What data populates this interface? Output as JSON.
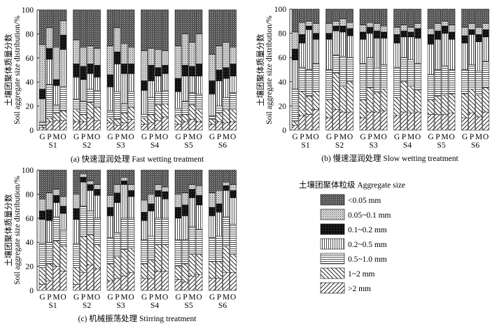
{
  "legend": {
    "title": "土壤团聚体粒级 Aggregate size",
    "items": [
      {
        "label": "<0.05 mm",
        "pattern": "dots-dark"
      },
      {
        "label": "0.05~0.1 mm",
        "pattern": "dots-light"
      },
      {
        "label": "0.1~0.2 mm",
        "pattern": "black"
      },
      {
        "label": "0.2~0.5 mm",
        "pattern": "vlines"
      },
      {
        "label": "0.5~1.0 mm",
        "pattern": "hlines"
      },
      {
        "label": "1~2 mm",
        "pattern": "backslash"
      },
      {
        "label": ">2 mm",
        "pattern": "slash"
      }
    ]
  },
  "chart_data": [
    {
      "type": "bar",
      "stacked": true,
      "title": "(a) 快速湿润处理 Fast wetting treatment",
      "ylabel_cn": "土壤团聚体质量分数",
      "ylabel_en": "Soil aggregate size distribution/%",
      "ylim": [
        0,
        100
      ],
      "yticks": [
        0,
        20,
        40,
        60,
        80,
        100
      ],
      "groups": [
        "S1",
        "S2",
        "S3",
        "S4",
        "S5",
        "S6"
      ],
      "treatments": [
        "G",
        "P",
        "M",
        "O"
      ],
      "series_order": [
        "<0.05 mm",
        "0.05~0.1 mm",
        "0.1~0.2 mm",
        "0.2~0.5 mm",
        "0.5~1.0 mm",
        "1~2 mm",
        ">2 mm"
      ],
      "values": [
        [
          [
            29,
            37,
            8,
            19,
            3,
            2,
            2
          ],
          [
            15,
            17,
            9,
            21,
            28,
            3,
            7
          ],
          [
            31,
            27,
            5,
            16,
            7,
            6,
            8
          ],
          [
            9,
            12,
            12,
            31,
            20,
            8,
            8
          ]
        ],
        [
          [
            25,
            20,
            11,
            18,
            9,
            10,
            7
          ],
          [
            31,
            16,
            11,
            18,
            11,
            6,
            7
          ],
          [
            30,
            15,
            8,
            13,
            11,
            13,
            10
          ],
          [
            32,
            14,
            10,
            11,
            14,
            11,
            8
          ]
        ],
        [
          [
            30,
            24,
            10,
            20,
            6,
            4,
            6
          ],
          [
            15,
            20,
            10,
            23,
            23,
            5,
            4
          ],
          [
            28,
            17,
            8,
            25,
            8,
            8,
            6
          ],
          [
            31,
            14,
            8,
            15,
            13,
            10,
            9
          ]
        ],
        [
          [
            34,
            25,
            8,
            20,
            3,
            5,
            5
          ],
          [
            32,
            14,
            13,
            14,
            14,
            7,
            6
          ],
          [
            33,
            15,
            7,
            13,
            11,
            13,
            8
          ],
          [
            34,
            12,
            7,
            14,
            11,
            11,
            11
          ]
        ],
        [
          [
            30,
            27,
            11,
            14,
            6,
            7,
            5
          ],
          [
            20,
            26,
            9,
            21,
            11,
            6,
            7
          ],
          [
            27,
            20,
            8,
            14,
            10,
            12,
            9
          ],
          [
            20,
            25,
            10,
            15,
            13,
            10,
            7
          ]
        ],
        [
          [
            37,
            22,
            11,
            18,
            3,
            4,
            5
          ],
          [
            30,
            20,
            9,
            21,
            6,
            7,
            7
          ],
          [
            27,
            21,
            9,
            16,
            10,
            11,
            6
          ],
          [
            31,
            14,
            10,
            14,
            14,
            10,
            7
          ]
        ]
      ]
    },
    {
      "type": "bar",
      "stacked": true,
      "title": "(b) 慢速湿润处理 Slow wetting treatment",
      "ylabel_cn": "土壤团聚体质量分数",
      "ylabel_en": "Soil aggregate size distribution/%",
      "ylim": [
        0,
        100
      ],
      "yticks": [
        0,
        20,
        40,
        60,
        80,
        100
      ],
      "groups": [
        "S1",
        "S2",
        "S3",
        "S4",
        "S5",
        "S6"
      ],
      "treatments": [
        "G",
        "P",
        "M",
        "O"
      ],
      "series_order": [
        "<0.05 mm",
        "0.05~0.1 mm",
        "0.1~0.2 mm",
        "0.2~0.5 mm",
        "0.5~1.0 mm",
        "1~2 mm",
        ">2 mm"
      ],
      "values": [
        [
          [
            19,
            14,
            9,
            24,
            27,
            3,
            4
          ],
          [
            11,
            10,
            7,
            20,
            20,
            20,
            12
          ],
          [
            10,
            4,
            3,
            33,
            22,
            15,
            13
          ],
          [
            12,
            8,
            5,
            20,
            23,
            15,
            17
          ]
        ],
        [
          [
            12,
            8,
            5,
            25,
            25,
            15,
            10
          ],
          [
            10,
            4,
            4,
            20,
            15,
            30,
            17
          ],
          [
            8,
            6,
            5,
            20,
            25,
            21,
            15
          ],
          [
            11,
            5,
            6,
            18,
            20,
            25,
            15
          ]
        ],
        [
          [
            13,
            6,
            6,
            20,
            30,
            15,
            10
          ],
          [
            11,
            4,
            5,
            20,
            25,
            20,
            15
          ],
          [
            12,
            6,
            6,
            25,
            20,
            16,
            15
          ],
          [
            14,
            5,
            5,
            22,
            20,
            18,
            16
          ]
        ],
        [
          [
            15,
            6,
            7,
            20,
            25,
            15,
            12
          ],
          [
            13,
            5,
            5,
            17,
            20,
            25,
            15
          ],
          [
            15,
            4,
            4,
            19,
            22,
            22,
            14
          ],
          [
            12,
            4,
            8,
            21,
            22,
            18,
            15
          ]
        ],
        [
          [
            16,
            5,
            8,
            25,
            21,
            12,
            13
          ],
          [
            12,
            6,
            7,
            25,
            22,
            15,
            13
          ],
          [
            10,
            4,
            6,
            27,
            24,
            16,
            13
          ],
          [
            13,
            6,
            6,
            25,
            20,
            16,
            14
          ]
        ],
        [
          [
            15,
            7,
            6,
            22,
            20,
            20,
            10
          ],
          [
            12,
            5,
            4,
            25,
            20,
            20,
            14
          ],
          [
            15,
            6,
            6,
            24,
            20,
            18,
            11
          ],
          [
            12,
            5,
            6,
            20,
            22,
            20,
            15
          ]
        ]
      ]
    },
    {
      "type": "bar",
      "stacked": true,
      "title": "(c) 机械振荡处理 Stirring treatment",
      "ylabel_cn": "土壤团聚体质量分数",
      "ylabel_en": "Soil aggregate size distribution/%",
      "ylim": [
        0,
        100
      ],
      "yticks": [
        0,
        20,
        40,
        60,
        80,
        100
      ],
      "groups": [
        "S1",
        "S2",
        "S3",
        "S4",
        "S5",
        "S6"
      ],
      "treatments": [
        "G",
        "P",
        "M",
        "O"
      ],
      "series_order": [
        "<0.05 mm",
        "0.05~0.1 mm",
        "0.1~0.2 mm",
        "0.2~0.5 mm",
        "0.5~1.0 mm",
        "1~2 mm",
        ">2 mm"
      ],
      "values": [
        [
          [
            24,
            10,
            7,
            20,
            20,
            14,
            5
          ],
          [
            19,
            14,
            9,
            18,
            18,
            14,
            8
          ],
          [
            16,
            5,
            6,
            12,
            20,
            21,
            20
          ],
          [
            22,
            8,
            6,
            14,
            13,
            21,
            16
          ]
        ],
        [
          [
            20,
            12,
            9,
            20,
            20,
            14,
            5
          ],
          [
            3,
            3,
            4,
            20,
            25,
            30,
            15
          ],
          [
            9,
            3,
            5,
            17,
            20,
            25,
            21
          ],
          [
            12,
            4,
            5,
            19,
            22,
            20,
            18
          ]
        ],
        [
          [
            21,
            10,
            7,
            18,
            22,
            14,
            8
          ],
          [
            12,
            7,
            8,
            25,
            20,
            18,
            10
          ],
          [
            6,
            3,
            3,
            28,
            26,
            22,
            12
          ],
          [
            12,
            5,
            5,
            18,
            25,
            20,
            15
          ]
        ],
        [
          [
            25,
            10,
            7,
            16,
            20,
            12,
            10
          ],
          [
            20,
            8,
            6,
            21,
            20,
            15,
            10
          ],
          [
            12,
            5,
            5,
            18,
            22,
            22,
            16
          ],
          [
            14,
            4,
            6,
            16,
            22,
            22,
            16
          ]
        ],
        [
          [
            20,
            11,
            9,
            18,
            22,
            11,
            9
          ],
          [
            19,
            10,
            9,
            20,
            20,
            15,
            7
          ],
          [
            12,
            4,
            7,
            24,
            23,
            18,
            12
          ],
          [
            13,
            8,
            8,
            20,
            21,
            17,
            13
          ]
        ],
        [
          [
            19,
            12,
            7,
            18,
            20,
            14,
            10
          ],
          [
            17,
            11,
            7,
            20,
            21,
            14,
            10
          ],
          [
            10,
            3,
            4,
            22,
            24,
            22,
            15
          ],
          [
            12,
            5,
            6,
            22,
            25,
            15,
            15
          ]
        ]
      ]
    }
  ]
}
